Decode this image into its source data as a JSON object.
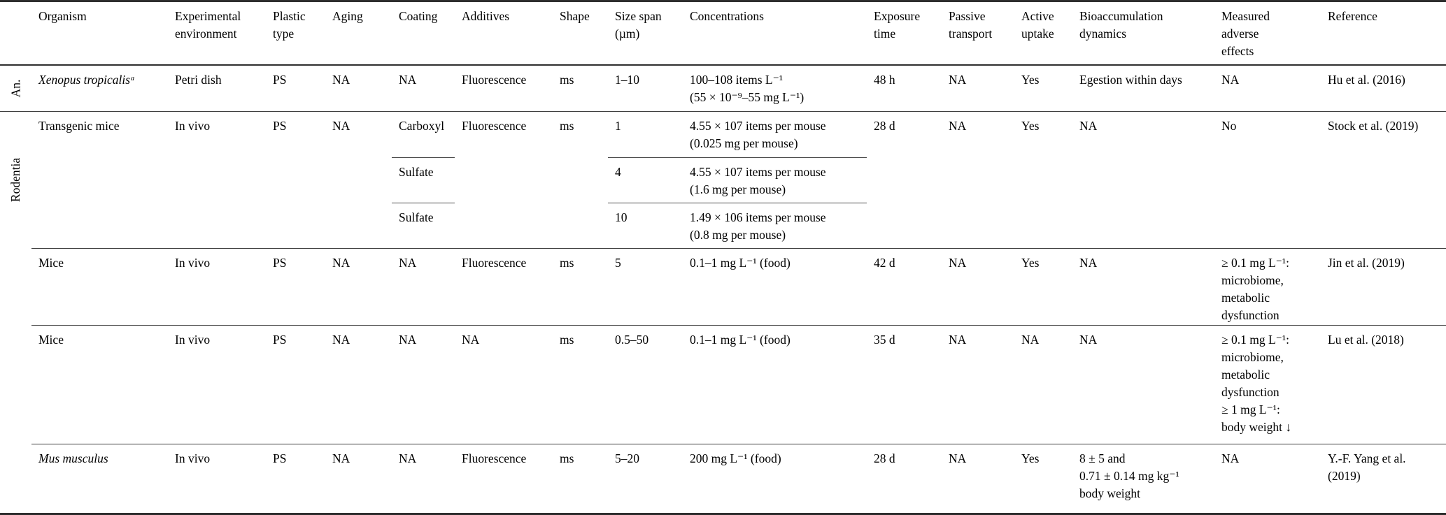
{
  "table": {
    "group_labels": {
      "amphibia": "An.",
      "rodentia": "Rodentia"
    },
    "headers": {
      "organism": "Organism",
      "env": "Experimental\nenvironment",
      "plastic": "Plastic\ntype",
      "aging": "Aging",
      "coating": "Coating",
      "additives": "Additives",
      "shape": "Shape",
      "size": "Size span\n(µm)",
      "conc": "Concentrations",
      "exposure": "Exposure\ntime",
      "passive": "Passive\ntransport",
      "active": "Active\nuptake",
      "bioacc": "Bioaccumulation\ndynamics",
      "adverse": "Measured\nadverse\neffects",
      "ref": "Reference"
    },
    "rows": [
      {
        "organism": "Xenopus tropicalisᵃ",
        "env": "Petri dish",
        "plastic": "PS",
        "aging": "NA",
        "coating": "NA",
        "additives": "Fluorescence",
        "shape": "ms",
        "size": "1–10",
        "conc": "100–108 items L⁻¹\n(55 × 10⁻⁹–55 mg L⁻¹)",
        "exposure": "48 h",
        "passive": "NA",
        "active": "Yes",
        "bioacc": "Egestion within days",
        "adverse": "NA",
        "ref": "Hu et al. (2016)"
      },
      {
        "organism": "Transgenic mice",
        "env": "In vivo",
        "plastic": "PS",
        "aging": "NA",
        "coatings": [
          "Carboxyl",
          "Sulfate",
          "Sulfate"
        ],
        "additives": "Fluorescence",
        "shape": "ms",
        "subrows": [
          {
            "size": "1",
            "conc": "4.55 × 107 items per mouse\n(0.025 mg per mouse)"
          },
          {
            "size": "4",
            "conc": "4.55 × 107 items per mouse\n(1.6 mg per mouse)"
          },
          {
            "size": "10",
            "conc": "1.49 × 106 items per mouse\n(0.8 mg per mouse)"
          }
        ],
        "exposure": "28 d",
        "passive": "NA",
        "active": "Yes",
        "bioacc": "NA",
        "adverse": "No",
        "ref": "Stock et al. (2019)"
      },
      {
        "organism": "Mice",
        "env": "In vivo",
        "plastic": "PS",
        "aging": "NA",
        "coating": "NA",
        "additives": "Fluorescence",
        "shape": "ms",
        "size": "5",
        "conc": "0.1–1 mg L⁻¹ (food)",
        "exposure": "42 d",
        "passive": "NA",
        "active": "Yes",
        "bioacc": "NA",
        "adverse": "≥ 0.1 mg L⁻¹:\nmicrobiome,\nmetabolic\ndysfunction",
        "ref": "Jin et al. (2019)"
      },
      {
        "organism": "Mice",
        "env": "In vivo",
        "plastic": "PS",
        "aging": "NA",
        "coating": "NA",
        "additives": "NA",
        "shape": "ms",
        "size": "0.5–50",
        "conc": "0.1–1 mg L⁻¹ (food)",
        "exposure": "35 d",
        "passive": "NA",
        "active": "NA",
        "bioacc": "NA",
        "adverse": "≥ 0.1 mg L⁻¹:\nmicrobiome,\nmetabolic\ndysfunction\n≥ 1 mg L⁻¹:\nbody weight ↓",
        "ref": "Lu et al. (2018)"
      },
      {
        "organism": "Mus musculus",
        "env": "In vivo",
        "plastic": "PS",
        "aging": "NA",
        "coating": "NA",
        "additives": "Fluorescence",
        "shape": "ms",
        "size": "5–20",
        "conc": "200 mg L⁻¹ (food)",
        "exposure": "28 d",
        "passive": "NA",
        "active": "Yes",
        "bioacc": "8 ± 5 and\n0.71 ± 0.14 mg kg⁻¹\nbody weight",
        "adverse": "NA",
        "ref": "Y.-F. Yang et al.\n(2019)"
      }
    ]
  }
}
